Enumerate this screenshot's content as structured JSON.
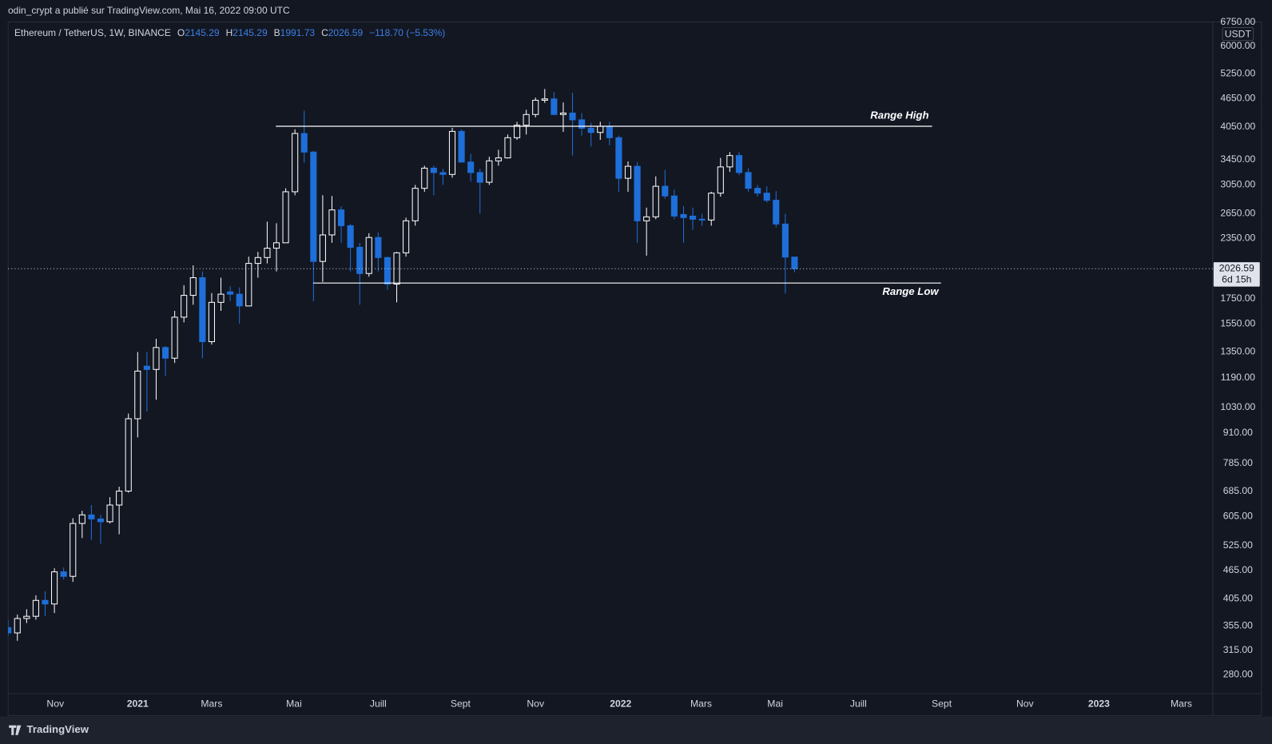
{
  "page": {
    "caption": "odin_crypt a publié sur TradingView.com, Mai 16, 2022 09:00 UTC",
    "footer": "TradingView"
  },
  "chart_data": {
    "type": "candlestick",
    "symbol": "Ethereum / TetherUS, 1W, BINANCE",
    "ohlc_labels": [
      "O",
      "H",
      "B",
      "C"
    ],
    "change_label": "−118.70 (−5.53%)",
    "unit": "USDT",
    "countdown": "6d 15h",
    "log_scale": true,
    "grid": false,
    "up_color": "#ffffff",
    "down_color": "#1e6fd9",
    "xlim": [
      0,
      130.2
    ],
    "xticks": [
      {
        "value": 5.1,
        "label": "Nov"
      },
      {
        "value": 14.0,
        "label": "2021"
      },
      {
        "value": 22.0,
        "label": "Mars"
      },
      {
        "value": 30.9,
        "label": "Mai"
      },
      {
        "value": 40.0,
        "label": "Juill"
      },
      {
        "value": 48.9,
        "label": "Sept"
      },
      {
        "value": 57.0,
        "label": "Nov"
      },
      {
        "value": 66.2,
        "label": "2022"
      },
      {
        "value": 74.9,
        "label": "Mars"
      },
      {
        "value": 82.9,
        "label": "Mai"
      },
      {
        "value": 91.9,
        "label": "Juill"
      },
      {
        "value": 100.9,
        "label": "Sept"
      },
      {
        "value": 109.9,
        "label": "Nov"
      },
      {
        "value": 117.9,
        "label": "2023"
      },
      {
        "value": 126.8,
        "label": "Mars"
      }
    ],
    "ylim": [
      255,
      6890
    ],
    "yticks": [
      {
        "value": 280,
        "label": "280.00"
      },
      {
        "value": 315,
        "label": "315.00"
      },
      {
        "value": 355,
        "label": "355.00"
      },
      {
        "value": 405,
        "label": "405.00"
      },
      {
        "value": 465,
        "label": "465.00"
      },
      {
        "value": 525,
        "label": "525.00"
      },
      {
        "value": 605,
        "label": "605.00"
      },
      {
        "value": 685,
        "label": "685.00"
      },
      {
        "value": 785,
        "label": "785.00"
      },
      {
        "value": 910,
        "label": "910.00"
      },
      {
        "value": 1030,
        "label": "1030.00"
      },
      {
        "value": 1190,
        "label": "1190.00"
      },
      {
        "value": 1350,
        "label": "1350.00"
      },
      {
        "value": 1550,
        "label": "1550.00"
      },
      {
        "value": 1750,
        "label": "1750.00"
      },
      {
        "value": 2350,
        "label": "2350.00"
      },
      {
        "value": 2650,
        "label": "2650.00"
      },
      {
        "value": 3050,
        "label": "3050.00"
      },
      {
        "value": 3450,
        "label": "3450.00"
      },
      {
        "value": 4050,
        "label": "4050.00"
      },
      {
        "value": 4650,
        "label": "4650.00"
      },
      {
        "value": 5250,
        "label": "5250.00"
      },
      {
        "value": 6000,
        "label": "6000.00"
      },
      {
        "value": 6750,
        "label": "6750.00"
      }
    ],
    "levels": [
      {
        "label": "Range High",
        "value": 4060
      },
      {
        "label": "Range Low",
        "value": 1890
      }
    ],
    "open": [
      352,
      343,
      368,
      372,
      402,
      395,
      462,
      452,
      585,
      610,
      598,
      590,
      640,
      685,
      975,
      1260,
      1240,
      1380,
      1310,
      1600,
      1780,
      1940,
      1420,
      1720,
      1810,
      1790,
      1690,
      2080,
      2140,
      2240,
      2300,
      2950,
      3920,
      3580,
      2100,
      2390,
      2700,
      2500,
      2250,
      1980,
      2360,
      2140,
      1880,
      2190,
      2560,
      3000,
      3310,
      3240,
      3210,
      3960,
      3410,
      3240,
      3090,
      3430,
      3480,
      3840,
      4080,
      4300,
      4610,
      4640,
      4300,
      4330,
      4190,
      4020,
      3940,
      4060,
      3840,
      3150,
      3340,
      2560,
      2610,
      3030,
      2890,
      2640,
      2620,
      2580,
      2570,
      2930,
      3330,
      3520,
      3240,
      3000,
      2930,
      2830,
      2520,
      2145.29
    ],
    "high": [
      365,
      375,
      385,
      412,
      420,
      470,
      472,
      600,
      622,
      640,
      610,
      665,
      700,
      1000,
      1350,
      1350,
      1440,
      1390,
      1650,
      1870,
      2060,
      2000,
      1800,
      1940,
      1860,
      1850,
      2150,
      2200,
      2550,
      2530,
      3000,
      4000,
      4380,
      3600,
      2900,
      2890,
      2750,
      2520,
      2300,
      2410,
      2420,
      2150,
      2200,
      2600,
      3050,
      3350,
      3350,
      3300,
      4030,
      4000,
      3550,
      3300,
      3500,
      3620,
      3900,
      4150,
      4400,
      4670,
      4870,
      4800,
      4560,
      4780,
      4330,
      4130,
      4150,
      4150,
      3880,
      3420,
      3410,
      2730,
      3180,
      3280,
      2980,
      2750,
      2730,
      2650,
      2950,
      3480,
      3580,
      3580,
      3310,
      3050,
      3030,
      2960,
      2650,
      2145.29
    ],
    "low": [
      338,
      330,
      360,
      366,
      372,
      378,
      445,
      440,
      545,
      540,
      530,
      585,
      555,
      680,
      890,
      1010,
      1070,
      1200,
      1280,
      1560,
      1700,
      1310,
      1400,
      1650,
      1730,
      1550,
      1690,
      1940,
      2080,
      2000,
      2300,
      2900,
      3400,
      1730,
      1900,
      2300,
      2300,
      2000,
      1700,
      1950,
      2000,
      1830,
      1720,
      2150,
      2500,
      2950,
      2900,
      3050,
      3160,
      3400,
      3100,
      2650,
      3050,
      3350,
      3470,
      3800,
      3900,
      4240,
      4550,
      4290,
      3950,
      3520,
      3880,
      3680,
      3800,
      3700,
      2950,
      2950,
      2300,
      2160,
      2580,
      2850,
      2580,
      2300,
      2450,
      2500,
      2500,
      2880,
      3250,
      3200,
      2950,
      2880,
      2800,
      2480,
      1795,
      1991.73
    ],
    "close": [
      343,
      368,
      372,
      402,
      395,
      462,
      452,
      585,
      610,
      598,
      590,
      640,
      685,
      975,
      1230,
      1240,
      1380,
      1310,
      1600,
      1780,
      1940,
      1420,
      1720,
      1790,
      1790,
      1690,
      2080,
      2140,
      2240,
      2300,
      2950,
      3920,
      3580,
      2100,
      2390,
      2700,
      2500,
      2250,
      1980,
      2360,
      2140,
      1880,
      2190,
      2560,
      3000,
      3310,
      3240,
      3210,
      3960,
      3410,
      3240,
      3090,
      3430,
      3480,
      3840,
      4080,
      4300,
      4610,
      4640,
      4300,
      4330,
      4190,
      4020,
      3940,
      4060,
      3840,
      3150,
      3340,
      2560,
      2610,
      3030,
      2890,
      2620,
      2600,
      2580,
      2570,
      2930,
      3330,
      3520,
      3240,
      3000,
      2930,
      2830,
      2520,
      2145.29,
      2026.59
    ]
  }
}
